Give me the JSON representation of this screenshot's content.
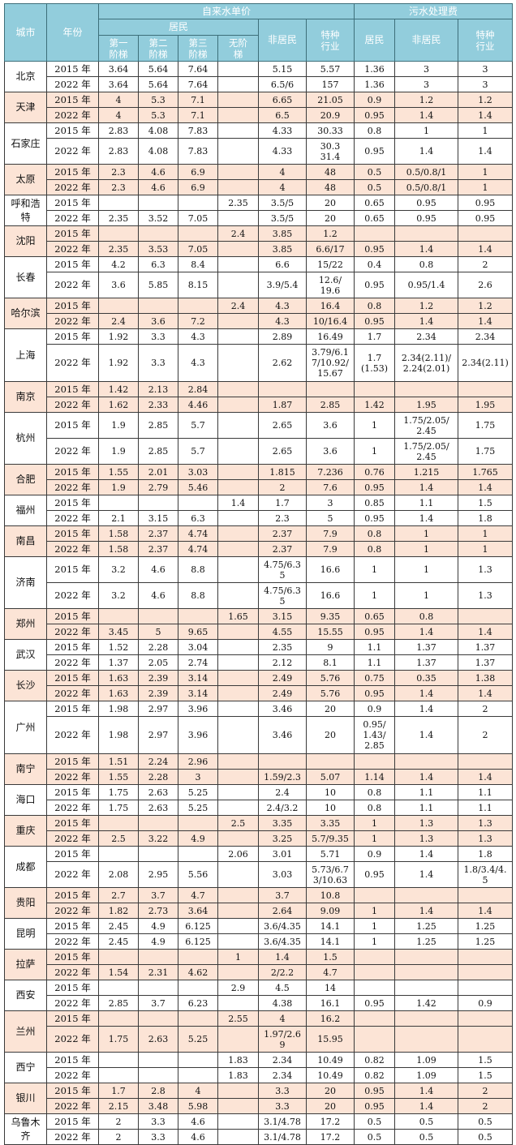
{
  "header": {
    "city": "城市",
    "year": "年份",
    "tap_water": "自来水单价",
    "sewage": "污水处理费",
    "residential": "居民",
    "tier1": "第一\n阶梯",
    "tier2": "第二\n阶梯",
    "tier3": "第三\n阶梯",
    "no_tier": "无阶\n梯",
    "non_residential": "非居民",
    "special": "特种\n行业",
    "sewage_residential": "居民",
    "sewage_non_residential": "非居民",
    "sewage_special": "特种\n行业"
  },
  "colors": {
    "header_bg": "#92cddc",
    "shaded_row": "#fce4d6"
  },
  "cities": [
    {
      "name": "北京",
      "rows": [
        [
          "2015 年",
          "3.64",
          "5.64",
          "7.64",
          "",
          "5.15",
          "5.57",
          "1.36",
          "3",
          "3"
        ],
        [
          "2022 年",
          "3.64",
          "5.64",
          "7.64",
          "",
          "6.5/6",
          "157",
          "1.36",
          "3",
          "3"
        ]
      ]
    },
    {
      "name": "天津",
      "rows": [
        [
          "2015 年",
          "4",
          "5.3",
          "7.1",
          "",
          "6.65",
          "21.05",
          "0.9",
          "1.2",
          "1.2"
        ],
        [
          "2022 年",
          "4",
          "5.3",
          "7.1",
          "",
          "6.5",
          "20.9",
          "0.95",
          "1.4",
          "1.4"
        ]
      ]
    },
    {
      "name": "石家庄",
      "rows": [
        [
          "2015 年",
          "2.83",
          "4.08",
          "7.83",
          "",
          "4.33",
          "30.33",
          "0.8",
          "1",
          "1"
        ],
        [
          "2022 年",
          "2.83",
          "4.08",
          "7.83",
          "",
          "4.33",
          "30.3\n31.4",
          "0.95",
          "1.4",
          "1.4"
        ]
      ]
    },
    {
      "name": "太原",
      "rows": [
        [
          "2015 年",
          "2.3",
          "4.6",
          "6.9",
          "",
          "4",
          "48",
          "0.5",
          "0.5/0.8/1",
          "1"
        ],
        [
          "2022 年",
          "2.3",
          "4.6",
          "6.9",
          "",
          "4",
          "48",
          "0.5",
          "0.5/0.8/1",
          "1"
        ]
      ]
    },
    {
      "name": "呼和浩\n特",
      "rows": [
        [
          "2015 年",
          "",
          "",
          "",
          "2.35",
          "3.5/5",
          "20",
          "0.65",
          "0.95",
          "0.95"
        ],
        [
          "2022 年",
          "2.35",
          "3.52",
          "7.05",
          "",
          "3.5/5",
          "20",
          "0.65",
          "0.95",
          "0.95"
        ]
      ]
    },
    {
      "name": "沈阳",
      "rows": [
        [
          "2015 年",
          "",
          "",
          "",
          "2.4",
          "3.85",
          "1.2",
          "",
          "",
          ""
        ],
        [
          "2022 年",
          "2.35",
          "3.53",
          "7.05",
          "",
          "3.85",
          "6.6/17",
          "0.95",
          "1.4",
          "1.4"
        ]
      ]
    },
    {
      "name": "长春",
      "rows": [
        [
          "2015 年",
          "4.2",
          "6.3",
          "8.4",
          "",
          "6.6",
          "15/22",
          "0.4",
          "0.8",
          "2"
        ],
        [
          "2022 年",
          "3.6",
          "5.85",
          "8.15",
          "",
          "3.9/5.4",
          "12.6/\n19.6",
          "0.95",
          "0.95/1.4",
          "2.6"
        ]
      ]
    },
    {
      "name": "哈尔滨",
      "rows": [
        [
          "2015 年",
          "",
          "",
          "",
          "2.4",
          "4.3",
          "16.4",
          "0.8",
          "1.2",
          "1.2"
        ],
        [
          "2022 年",
          "2.4",
          "3.6",
          "7.2",
          "",
          "4.3",
          "10/16.4",
          "0.95",
          "1.4",
          "1.4"
        ]
      ]
    },
    {
      "name": "上海",
      "rows": [
        [
          "2015 年",
          "1.92",
          "3.3",
          "4.3",
          "",
          "2.89",
          "16.49",
          "1.7",
          "2.34",
          "2.34"
        ],
        [
          "2022 年",
          "1.92",
          "3.3",
          "4.3",
          "",
          "2.62",
          "3.79/6.1\n7/10.92/\n15.67",
          "1.7\n(1.53)",
          "2.34(2.11)/\n2.24(2.01)",
          "2.34(2.11)"
        ]
      ]
    },
    {
      "name": "南京",
      "rows": [
        [
          "2015 年",
          "1.42",
          "2.13",
          "2.84",
          "",
          "",
          "",
          "",
          "",
          ""
        ],
        [
          "2022 年",
          "1.62",
          "2.33",
          "4.46",
          "",
          "1.87",
          "2.85",
          "1.42",
          "1.95",
          "1.95"
        ]
      ]
    },
    {
      "name": "杭州",
      "rows": [
        [
          "2015 年",
          "1.9",
          "2.85",
          "5.7",
          "",
          "2.65",
          "3.6",
          "1",
          "1.75/2.05/\n2.45",
          "1.75"
        ],
        [
          "2022 年",
          "1.9",
          "2.85",
          "5.7",
          "",
          "2.65",
          "3.6",
          "1",
          "1.75/2.05/\n2.45",
          "1.75"
        ]
      ]
    },
    {
      "name": "合肥",
      "rows": [
        [
          "2015 年",
          "1.55",
          "2.01",
          "3.03",
          "",
          "1.815",
          "7.236",
          "0.76",
          "1.215",
          "1.765"
        ],
        [
          "2022 年",
          "1.9",
          "2.79",
          "5.46",
          "",
          "2",
          "7.6",
          "0.95",
          "1.4",
          "1.4"
        ]
      ]
    },
    {
      "name": "福州",
      "rows": [
        [
          "2015 年",
          "",
          "",
          "",
          "1.4",
          "1.7",
          "3",
          "0.85",
          "1.1",
          "1.5"
        ],
        [
          "2022 年",
          "2.1",
          "3.15",
          "6.3",
          "",
          "2.3",
          "5",
          "0.95",
          "1.4",
          "1.8"
        ]
      ]
    },
    {
      "name": "南昌",
      "rows": [
        [
          "2015 年",
          "1.58",
          "2.37",
          "4.74",
          "",
          "2.37",
          "7.9",
          "0.8",
          "1",
          "1"
        ],
        [
          "2022 年",
          "1.58",
          "2.37",
          "4.74",
          "",
          "2.37",
          "7.9",
          "0.8",
          "1",
          "1"
        ]
      ]
    },
    {
      "name": "济南",
      "rows": [
        [
          "2015 年",
          "3.2",
          "4.6",
          "8.8",
          "",
          "4.75/6.3\n5",
          "16.6",
          "1",
          "1",
          "1.3"
        ],
        [
          "2022 年",
          "3.2",
          "4.6",
          "8.8",
          "",
          "4.75/6.3\n5",
          "16.6",
          "1",
          "1",
          "1.3"
        ]
      ]
    },
    {
      "name": "郑州",
      "rows": [
        [
          "2015 年",
          "",
          "",
          "",
          "1.65",
          "3.15",
          "9.35",
          "0.65",
          "0.8",
          ""
        ],
        [
          "2022 年",
          "3.45",
          "5",
          "9.65",
          "",
          "4.55",
          "15.55",
          "0.95",
          "1.4",
          "1.4"
        ]
      ]
    },
    {
      "name": "武汉",
      "rows": [
        [
          "2015 年",
          "1.52",
          "2.28",
          "3.04",
          "",
          "2.35",
          "9",
          "1.1",
          "1.37",
          "1.37"
        ],
        [
          "2022 年",
          "1.37",
          "2.05",
          "2.74",
          "",
          "2.12",
          "8.1",
          "1.1",
          "1.37",
          "1.37"
        ]
      ]
    },
    {
      "name": "长沙",
      "rows": [
        [
          "2015 年",
          "1.63",
          "2.39",
          "3.14",
          "",
          "2.49",
          "5.76",
          "0.75",
          "0.35",
          "1.38"
        ],
        [
          "2022 年",
          "1.63",
          "2.39",
          "3.14",
          "",
          "2.49",
          "5.76",
          "0.95",
          "1.4",
          "1.4"
        ]
      ]
    },
    {
      "name": "广州",
      "rows": [
        [
          "2015 年",
          "1.98",
          "2.97",
          "3.96",
          "",
          "3.46",
          "20",
          "0.9",
          "1.4",
          "2"
        ],
        [
          "2022 年",
          "1.98",
          "2.97",
          "3.96",
          "",
          "3.46",
          "20",
          "0.95/\n1.43/\n2.85",
          "1.4",
          "2"
        ]
      ]
    },
    {
      "name": "南宁",
      "rows": [
        [
          "2015 年",
          "1.51",
          "2.24",
          "2.96",
          "",
          "",
          "",
          "",
          "",
          ""
        ],
        [
          "2022 年",
          "1.55",
          "2.28",
          "3",
          "",
          "1.59/2.3",
          "5.07",
          "1.14",
          "1.4",
          "1.4"
        ]
      ]
    },
    {
      "name": "海口",
      "rows": [
        [
          "2015 年",
          "1.75",
          "2.63",
          "5.25",
          "",
          "2.4",
          "10",
          "0.8",
          "1.1",
          "1.1"
        ],
        [
          "2022 年",
          "1.75",
          "2.63",
          "5.25",
          "",
          "2.4/3.2",
          "10",
          "0.8",
          "1.1",
          "1.1"
        ]
      ]
    },
    {
      "name": "重庆",
      "rows": [
        [
          "2015 年",
          "",
          "",
          "",
          "2.5",
          "3.35",
          "3.35",
          "1",
          "1.3",
          "1.3"
        ],
        [
          "2022 年",
          "2.5",
          "3.22",
          "4.9",
          "",
          "3.25",
          "5.7/9.35",
          "1",
          "1.3",
          "1.3"
        ]
      ]
    },
    {
      "name": "成都",
      "rows": [
        [
          "2015 年",
          "",
          "",
          "",
          "2.06",
          "3.01",
          "5.71",
          "0.9",
          "1.4",
          "1.8"
        ],
        [
          "2022 年",
          "2.08",
          "2.95",
          "5.56",
          "",
          "3.03",
          "5.73/6.7\n3/10.63",
          "0.95",
          "1.4",
          "1.8/3.4/4.\n5"
        ]
      ]
    },
    {
      "name": "贵阳",
      "rows": [
        [
          "2015 年",
          "2.7",
          "3.7",
          "4.7",
          "",
          "3.7",
          "10.8",
          "",
          "",
          ""
        ],
        [
          "2022 年",
          "1.82",
          "2.73",
          "3.64",
          "",
          "2.64",
          "9.09",
          "1",
          "1.4",
          "1.4"
        ]
      ]
    },
    {
      "name": "昆明",
      "rows": [
        [
          "2015 年",
          "2.45",
          "4.9",
          "6.125",
          "",
          "3.6/4.35",
          "14.1",
          "1",
          "1.25",
          "1.25"
        ],
        [
          "2022 年",
          "2.45",
          "4.9",
          "6.125",
          "",
          "3.6/4.35",
          "14.1",
          "1",
          "1.25",
          "1.25"
        ]
      ]
    },
    {
      "name": "拉萨",
      "rows": [
        [
          "2015 年",
          "",
          "",
          "",
          "1",
          "1.4",
          "1.5",
          "",
          "",
          ""
        ],
        [
          "2022 年",
          "1.54",
          "2.31",
          "4.62",
          "",
          "2/2.2",
          "4.7",
          "",
          "",
          ""
        ]
      ]
    },
    {
      "name": "西安",
      "rows": [
        [
          "2015 年",
          "",
          "",
          "",
          "2.9",
          "4.5",
          "14",
          "",
          "",
          ""
        ],
        [
          "2022 年",
          "2.85",
          "3.7",
          "6.23",
          "",
          "4.38",
          "16.1",
          "0.95",
          "1.42",
          "0.9"
        ]
      ]
    },
    {
      "name": "兰州",
      "rows": [
        [
          "2015 年",
          "",
          "",
          "",
          "2.55",
          "4",
          "16.2",
          "",
          "",
          ""
        ],
        [
          "2022 年",
          "1.75",
          "2.63",
          "5.25",
          "",
          "1.97/2.6\n9",
          "15.95",
          "",
          "",
          ""
        ]
      ]
    },
    {
      "name": "西宁",
      "rows": [
        [
          "2015 年",
          "",
          "",
          "",
          "1.83",
          "2.34",
          "10.49",
          "0.82",
          "1.09",
          "1.5"
        ],
        [
          "2022 年",
          "",
          "",
          "",
          "1.83",
          "2.34",
          "10.49",
          "0.82",
          "1.09",
          "1.5"
        ]
      ]
    },
    {
      "name": "银川",
      "rows": [
        [
          "2015 年",
          "1.7",
          "2.8",
          "4",
          "",
          "3.3",
          "20",
          "0.95",
          "1.4",
          "2"
        ],
        [
          "2022 年",
          "2.15",
          "3.48",
          "5.98",
          "",
          "3.3",
          "20",
          "0.95",
          "1.4",
          "2"
        ]
      ]
    },
    {
      "name": "乌鲁木\n齐",
      "rows": [
        [
          "2015 年",
          "2",
          "3.3",
          "4.6",
          "",
          "3.1/4.78",
          "17.2",
          "0.5",
          "0.5",
          "0.5"
        ],
        [
          "2022 年",
          "2",
          "3.3",
          "4.6",
          "",
          "3.1/4.78",
          "17.2",
          "0.5",
          "0.5",
          "0.5"
        ]
      ]
    }
  ]
}
